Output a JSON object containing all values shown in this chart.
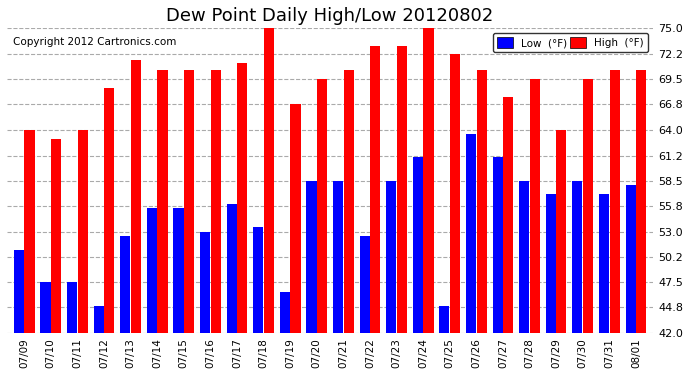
{
  "title": "Dew Point Daily High/Low 20120802",
  "copyright": "Copyright 2012 Cartronics.com",
  "dates": [
    "07/09",
    "07/10",
    "07/11",
    "07/12",
    "07/13",
    "07/14",
    "07/15",
    "07/16",
    "07/17",
    "07/18",
    "07/19",
    "07/20",
    "07/21",
    "07/22",
    "07/23",
    "07/24",
    "07/25",
    "07/26",
    "07/27",
    "07/28",
    "07/29",
    "07/30",
    "07/31",
    "08/01"
  ],
  "high": [
    64.0,
    63.0,
    64.0,
    68.5,
    71.5,
    70.5,
    70.5,
    70.5,
    71.2,
    75.0,
    66.8,
    69.5,
    70.5,
    73.0,
    73.0,
    75.0,
    72.2,
    70.5,
    67.5,
    69.5,
    64.0,
    69.5,
    70.5,
    70.5
  ],
  "low": [
    51.0,
    47.5,
    47.5,
    45.0,
    52.5,
    55.5,
    55.5,
    53.0,
    56.0,
    53.5,
    46.5,
    58.5,
    58.5,
    52.5,
    58.5,
    61.0,
    45.0,
    63.5,
    61.0,
    58.5,
    57.0,
    58.5,
    57.0,
    58.0
  ],
  "ymin": 42.0,
  "ymax": 75.0,
  "yticks": [
    42.0,
    44.8,
    47.5,
    50.2,
    53.0,
    55.8,
    58.5,
    61.2,
    64.0,
    66.8,
    69.5,
    72.2,
    75.0
  ],
  "bar_color_low": "#0000ff",
  "bar_color_high": "#ff0000",
  "background_color": "#ffffff",
  "plot_bg_color": "#ffffff",
  "legend_low_label": "Low  (°F)",
  "legend_high_label": "High  (°F)",
  "title_fontsize": 13,
  "copyright_fontsize": 7.5,
  "bar_width": 0.38,
  "bar_gap": 0.02
}
